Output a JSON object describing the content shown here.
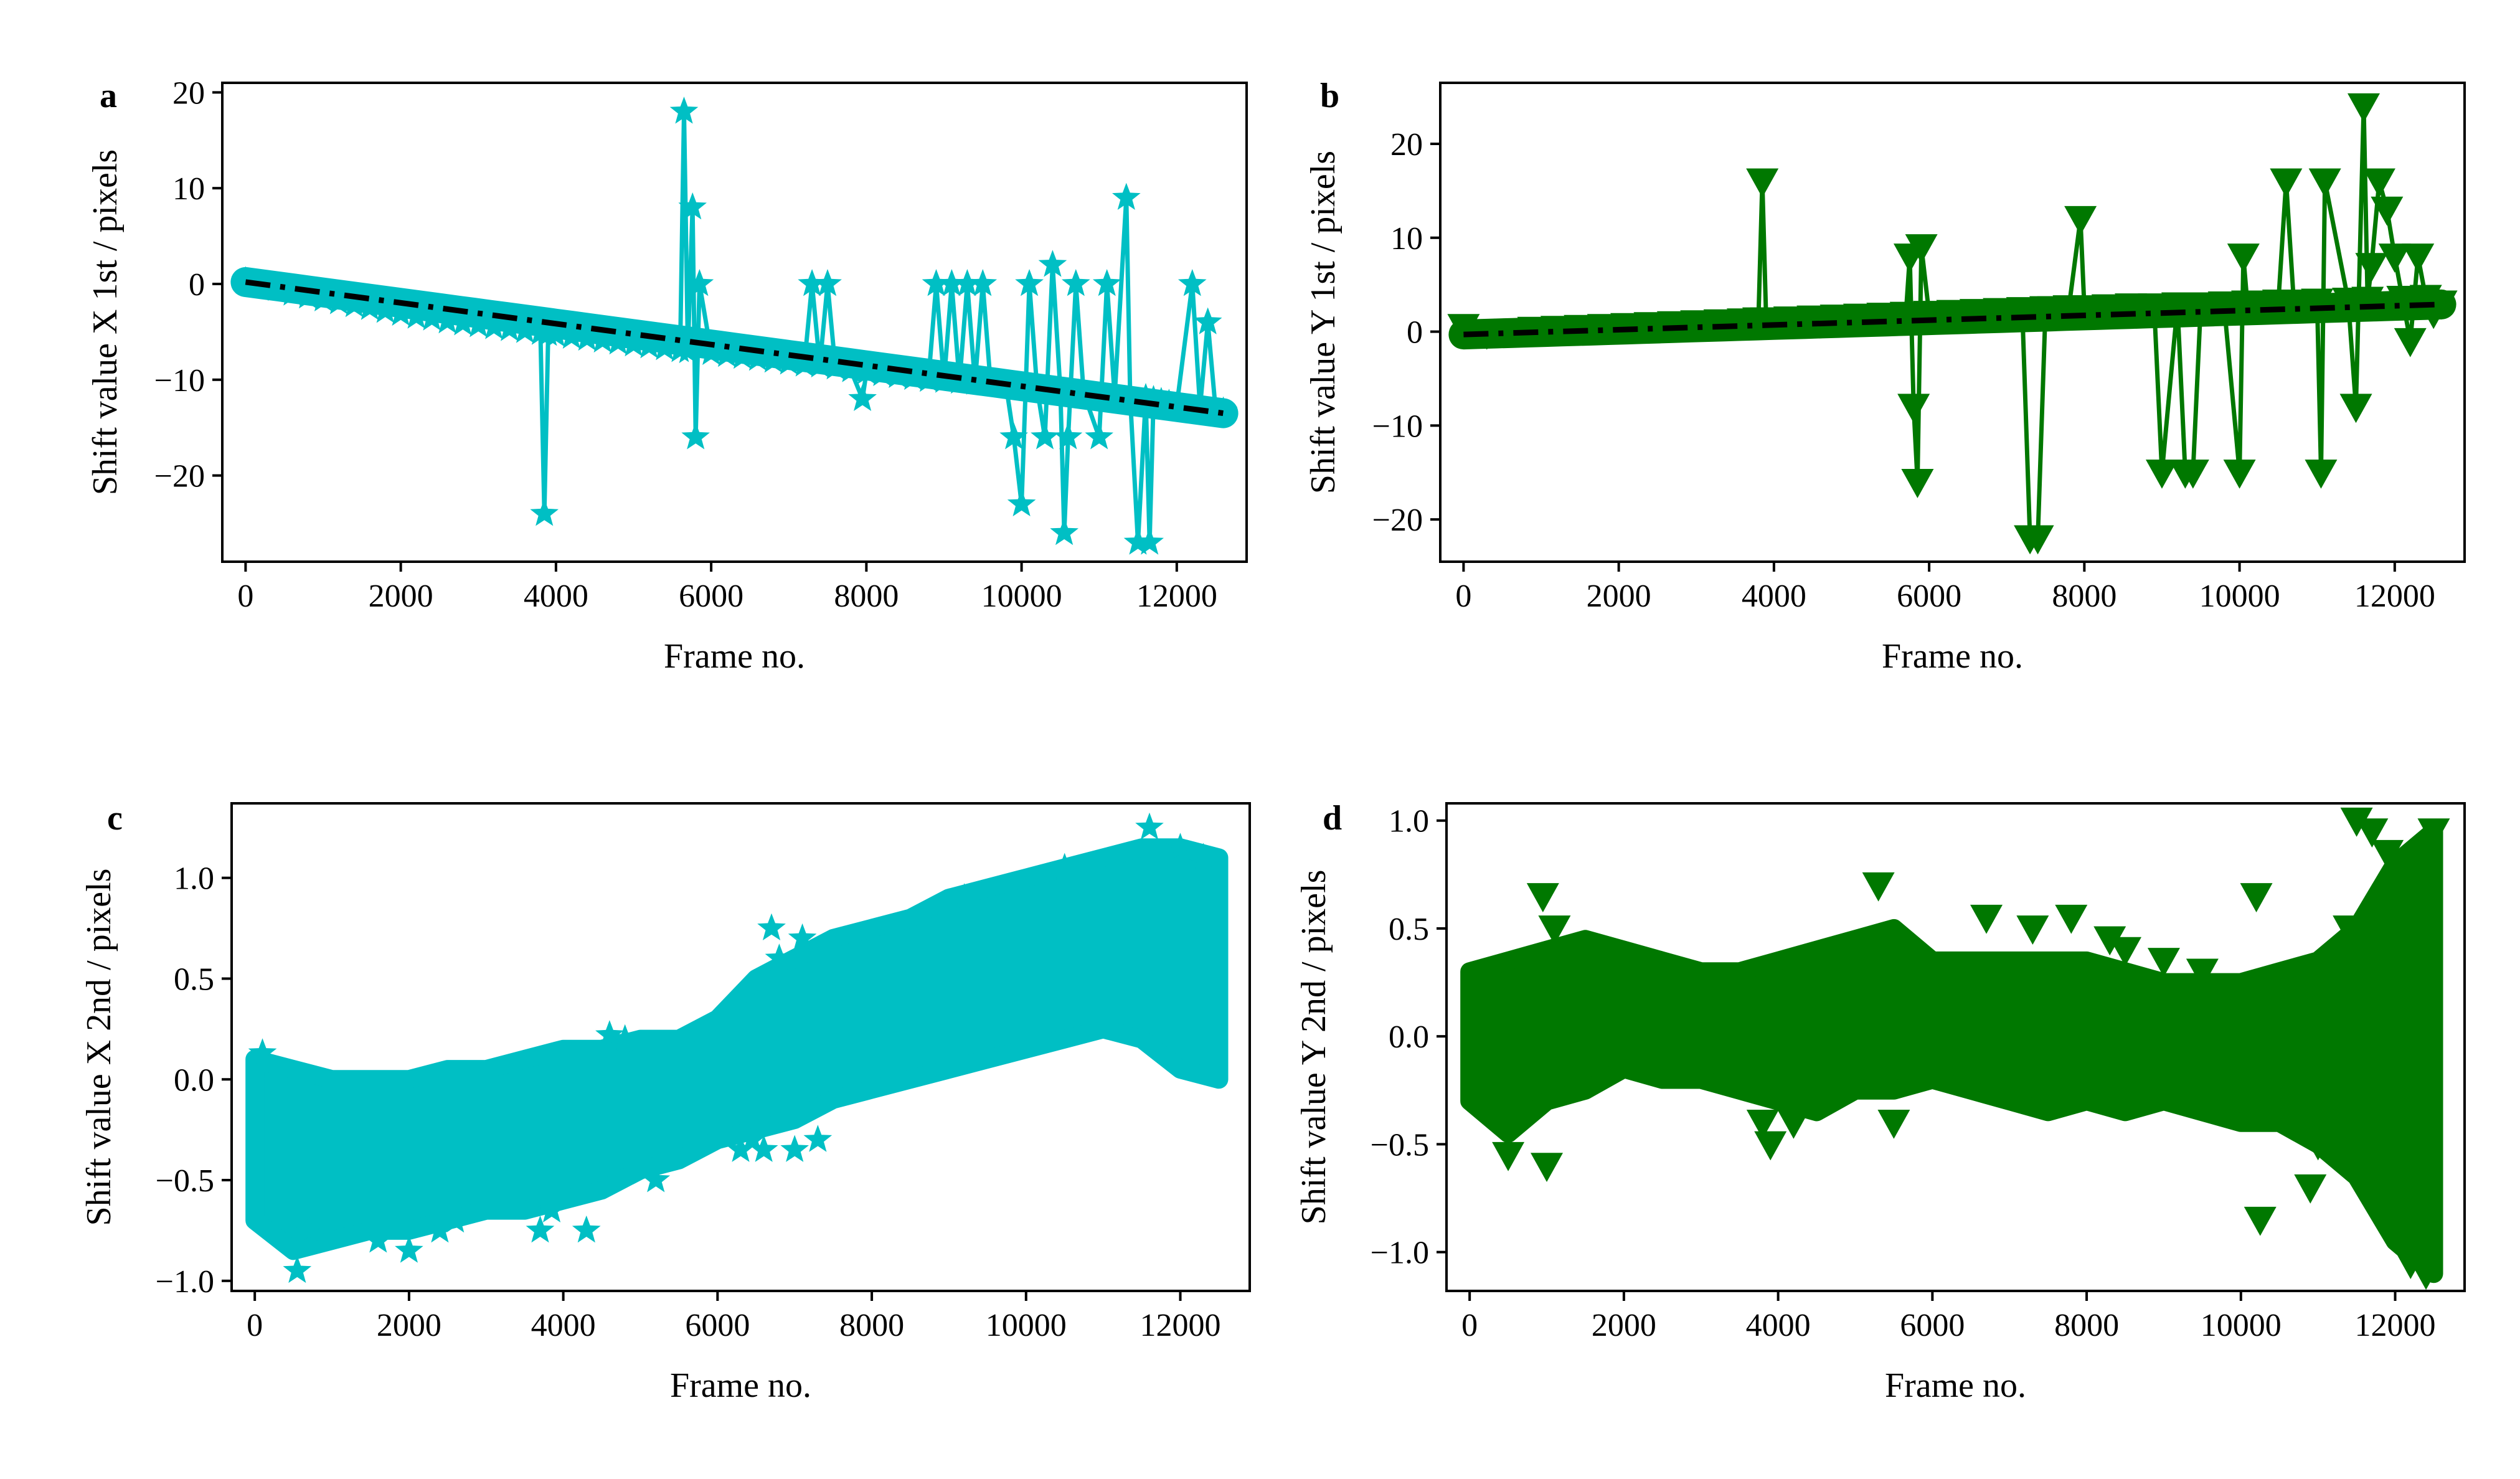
{
  "colors": {
    "cyan": "#00bfc4",
    "green": "#007800",
    "trend": "#000000"
  },
  "chart_data": [
    {
      "panel": "a",
      "type": "line",
      "marker": "star",
      "color": "#00bfc4",
      "xlabel": "Frame no.",
      "ylabel": "Shift value X 1st / pixels",
      "xlim": [
        -300,
        12900
      ],
      "ylim": [
        -29,
        21
      ],
      "xticks": [
        0,
        2000,
        4000,
        6000,
        8000,
        10000,
        12000
      ],
      "yticks": [
        -20,
        -10,
        0,
        10,
        20
      ],
      "grid": false,
      "trend": {
        "style": "dash-dot",
        "x": [
          0,
          12600
        ],
        "y": [
          0.2,
          -13.5
        ]
      },
      "series": [
        {
          "x": [
            0,
            200,
            400,
            600,
            800,
            1000,
            1200,
            1400,
            1600,
            1800,
            2000,
            2200,
            2400,
            2600,
            2800,
            3000,
            3200,
            3400,
            3600,
            3800,
            3850,
            3900,
            4000,
            4200,
            4400,
            4600,
            4800,
            5000,
            5200,
            5400,
            5600,
            5650,
            5700,
            5760,
            5800,
            5850,
            6000,
            6200,
            6400,
            6600,
            6800,
            7000,
            7200,
            7300,
            7400,
            7500,
            7600,
            7800,
            7950,
            8000,
            8200,
            8400,
            8600,
            8800,
            8900,
            9000,
            9100,
            9200,
            9300,
            9400,
            9500,
            9600,
            9800,
            9900,
            10000,
            10100,
            10200,
            10300,
            10400,
            10500,
            10550,
            10600,
            10700,
            10800,
            11000,
            11100,
            11200,
            11350,
            11400,
            11500,
            11600,
            11650,
            11700,
            11800,
            11900,
            12000,
            12200,
            12300,
            12400,
            12500,
            12600
          ],
          "y": [
            0.3,
            -0.2,
            -0.5,
            -1,
            -1.3,
            -1.6,
            -1.9,
            -2.2,
            -2.5,
            -2.8,
            -3.1,
            -3.4,
            -3.6,
            -3.9,
            -4.1,
            -4.3,
            -4.5,
            -4.7,
            -4.9,
            -5.1,
            -24,
            -5.2,
            -5.3,
            -5.5,
            -5.7,
            -5.9,
            -6.1,
            -6.3,
            -6.5,
            -6.7,
            -6.9,
            18,
            -7,
            8,
            -16,
            0,
            -7.2,
            -7.4,
            -7.6,
            -7.8,
            -8,
            -8.2,
            -8.4,
            0,
            -8.5,
            0,
            -8.7,
            -9,
            -12,
            -9.2,
            -9.4,
            -9.6,
            -9.8,
            -10,
            0,
            -10.1,
            0,
            -10.2,
            0,
            -10.3,
            0,
            -10.4,
            -10.6,
            -16,
            -23,
            0,
            -10.9,
            -16,
            2,
            -11.1,
            -26,
            -16,
            0,
            -11.4,
            -16,
            0,
            -11.7,
            9,
            -12,
            -27,
            -11.9,
            -27,
            -12.1,
            -12.3,
            -12.5,
            -12.7,
            0,
            -12.9,
            -4,
            -13.1,
            -13.3
          ]
        }
      ]
    },
    {
      "panel": "b",
      "type": "line",
      "marker": "triangle-down",
      "color": "#007800",
      "xlabel": "Frame no.",
      "ylabel": "Shift value Y 1st / pixels",
      "xlim": [
        -300,
        12900
      ],
      "ylim": [
        -24.5,
        26.5
      ],
      "xticks": [
        0,
        2000,
        4000,
        6000,
        8000,
        10000,
        12000
      ],
      "yticks": [
        -20,
        -10,
        0,
        10,
        20
      ],
      "grid": false,
      "trend": {
        "style": "dash-dot",
        "x": [
          0,
          12600
        ],
        "y": [
          -0.3,
          2.9
        ]
      },
      "series": [
        {
          "x": [
            0,
            300,
            600,
            900,
            1200,
            1500,
            1800,
            2100,
            2400,
            2700,
            3000,
            3300,
            3600,
            3800,
            3850,
            3900,
            4200,
            4500,
            4800,
            5100,
            5400,
            5700,
            5750,
            5800,
            5850,
            5900,
            6000,
            6300,
            6600,
            6900,
            7200,
            7300,
            7400,
            7500,
            7600,
            7800,
            7950,
            8000,
            8300,
            8600,
            8900,
            9000,
            9200,
            9300,
            9400,
            9500,
            9800,
            10000,
            10050,
            10100,
            10300,
            10500,
            10600,
            10700,
            11000,
            11050,
            11100,
            11400,
            11500,
            11600,
            11650,
            11700,
            11800,
            11900,
            12000,
            12100,
            12200,
            12300,
            12400,
            12500,
            12600
          ],
          "y": [
            0.5,
            -0.2,
            0,
            0.2,
            0.3,
            0.4,
            0.5,
            0.6,
            0.7,
            0.8,
            0.9,
            1,
            1.1,
            1.2,
            16,
            1.2,
            1.3,
            1.4,
            1.5,
            1.6,
            1.7,
            1.8,
            8,
            -8,
            -16,
            9,
            1.9,
            2,
            2.1,
            2.2,
            2.3,
            -22,
            -22,
            2.4,
            2.4,
            2.5,
            12,
            2.5,
            2.6,
            2.7,
            2.7,
            -15,
            2.8,
            -15,
            -15,
            2.8,
            2.9,
            -15,
            8,
            3,
            3,
            3.1,
            16,
            3.1,
            3.2,
            -15,
            16,
            3.3,
            -8,
            24,
            3.4,
            7,
            16,
            13,
            8,
            3.5,
            -1,
            8,
            3.6,
            2,
            3
          ]
        }
      ]
    },
    {
      "panel": "c",
      "type": "scatter",
      "marker": "star",
      "color": "#00bfc4",
      "xlabel": "Frame no.",
      "ylabel": "Shift value X 2nd / pixels",
      "xlim": [
        -300,
        12900
      ],
      "ylim": [
        -1.05,
        1.37
      ],
      "xticks": [
        0,
        2000,
        4000,
        6000,
        8000,
        10000,
        12000
      ],
      "yticks": [
        -1.0,
        -0.5,
        0.0,
        0.5,
        1.0
      ],
      "grid": false,
      "band": {
        "x": [
          0,
          500,
          1000,
          1500,
          2000,
          2500,
          3000,
          3500,
          4000,
          4500,
          5000,
          5500,
          6000,
          6500,
          7000,
          7500,
          8000,
          8500,
          9000,
          9500,
          10000,
          10500,
          11000,
          11500,
          12000,
          12500
        ],
        "upper": [
          0.1,
          0.05,
          0.0,
          0.0,
          0.0,
          0.05,
          0.05,
          0.1,
          0.15,
          0.15,
          0.2,
          0.2,
          0.3,
          0.5,
          0.6,
          0.7,
          0.75,
          0.8,
          0.9,
          0.95,
          1.0,
          1.05,
          1.1,
          1.15,
          1.15,
          1.1
        ],
        "lower": [
          -0.7,
          -0.85,
          -0.8,
          -0.75,
          -0.75,
          -0.7,
          -0.65,
          -0.65,
          -0.6,
          -0.55,
          -0.45,
          -0.4,
          -0.3,
          -0.25,
          -0.2,
          -0.1,
          -0.05,
          0.0,
          0.05,
          0.1,
          0.15,
          0.2,
          0.25,
          0.2,
          0.05,
          0.0
        ]
      },
      "outliers": {
        "x": [
          100,
          550,
          700,
          1600,
          2000,
          2400,
          2600,
          3700,
          3850,
          4300,
          4600,
          4800,
          5200,
          6300,
          6450,
          6600,
          6700,
          6800,
          7000,
          7100,
          7300,
          8300,
          9200,
          10500,
          11600,
          12000,
          12300
        ],
        "y": [
          0.13,
          -0.95,
          -0.75,
          -0.8,
          -0.85,
          -0.75,
          -0.7,
          -0.75,
          -0.65,
          -0.75,
          0.22,
          0.2,
          -0.5,
          -0.35,
          -0.3,
          -0.35,
          0.75,
          0.6,
          -0.35,
          0.7,
          -0.3,
          0.5,
          0.9,
          1.05,
          1.25,
          1.15,
          1.1
        ]
      }
    },
    {
      "panel": "d",
      "type": "scatter",
      "marker": "triangle-down",
      "color": "#007800",
      "xlabel": "Frame no.",
      "ylabel": "Shift value Y 2nd / pixels",
      "xlim": [
        -300,
        12900
      ],
      "ylim": [
        -1.18,
        1.08
      ],
      "xticks": [
        0,
        2000,
        4000,
        6000,
        8000,
        10000,
        12000
      ],
      "yticks": [
        -1.0,
        -0.5,
        0.0,
        0.5,
        1.0
      ],
      "grid": false,
      "band": {
        "x": [
          0,
          500,
          1000,
          1500,
          2000,
          2500,
          3000,
          3500,
          4000,
          4500,
          5000,
          5500,
          6000,
          6500,
          7000,
          7500,
          8000,
          8500,
          9000,
          9500,
          10000,
          10500,
          11000,
          11500,
          12000,
          12500
        ],
        "upper": [
          0.3,
          0.35,
          0.4,
          0.45,
          0.4,
          0.35,
          0.3,
          0.3,
          0.35,
          0.4,
          0.45,
          0.5,
          0.35,
          0.35,
          0.35,
          0.35,
          0.35,
          0.3,
          0.25,
          0.25,
          0.25,
          0.3,
          0.35,
          0.5,
          0.8,
          0.95
        ],
        "lower": [
          -0.3,
          -0.45,
          -0.3,
          -0.25,
          -0.15,
          -0.2,
          -0.2,
          -0.25,
          -0.3,
          -0.35,
          -0.25,
          -0.25,
          -0.2,
          -0.25,
          -0.3,
          -0.35,
          -0.3,
          -0.35,
          -0.3,
          -0.35,
          -0.4,
          -0.4,
          -0.5,
          -0.65,
          -0.95,
          -1.1
        ]
      },
      "outliers": {
        "x": [
          500,
          950,
          1000,
          1100,
          3800,
          3900,
          4200,
          5300,
          5500,
          6700,
          7300,
          7800,
          8300,
          8500,
          9000,
          9500,
          10200,
          10250,
          10900,
          11000,
          11400,
          11500,
          11700,
          11900,
          12200,
          12400,
          12500
        ],
        "y": [
          -0.55,
          0.65,
          -0.6,
          0.5,
          -0.4,
          -0.5,
          -0.4,
          0.7,
          -0.4,
          0.55,
          0.5,
          0.55,
          0.45,
          0.4,
          0.35,
          0.3,
          0.65,
          -0.85,
          -0.7,
          -0.5,
          0.5,
          1.0,
          0.95,
          0.85,
          -1.05,
          -1.1,
          0.95
        ]
      }
    }
  ]
}
